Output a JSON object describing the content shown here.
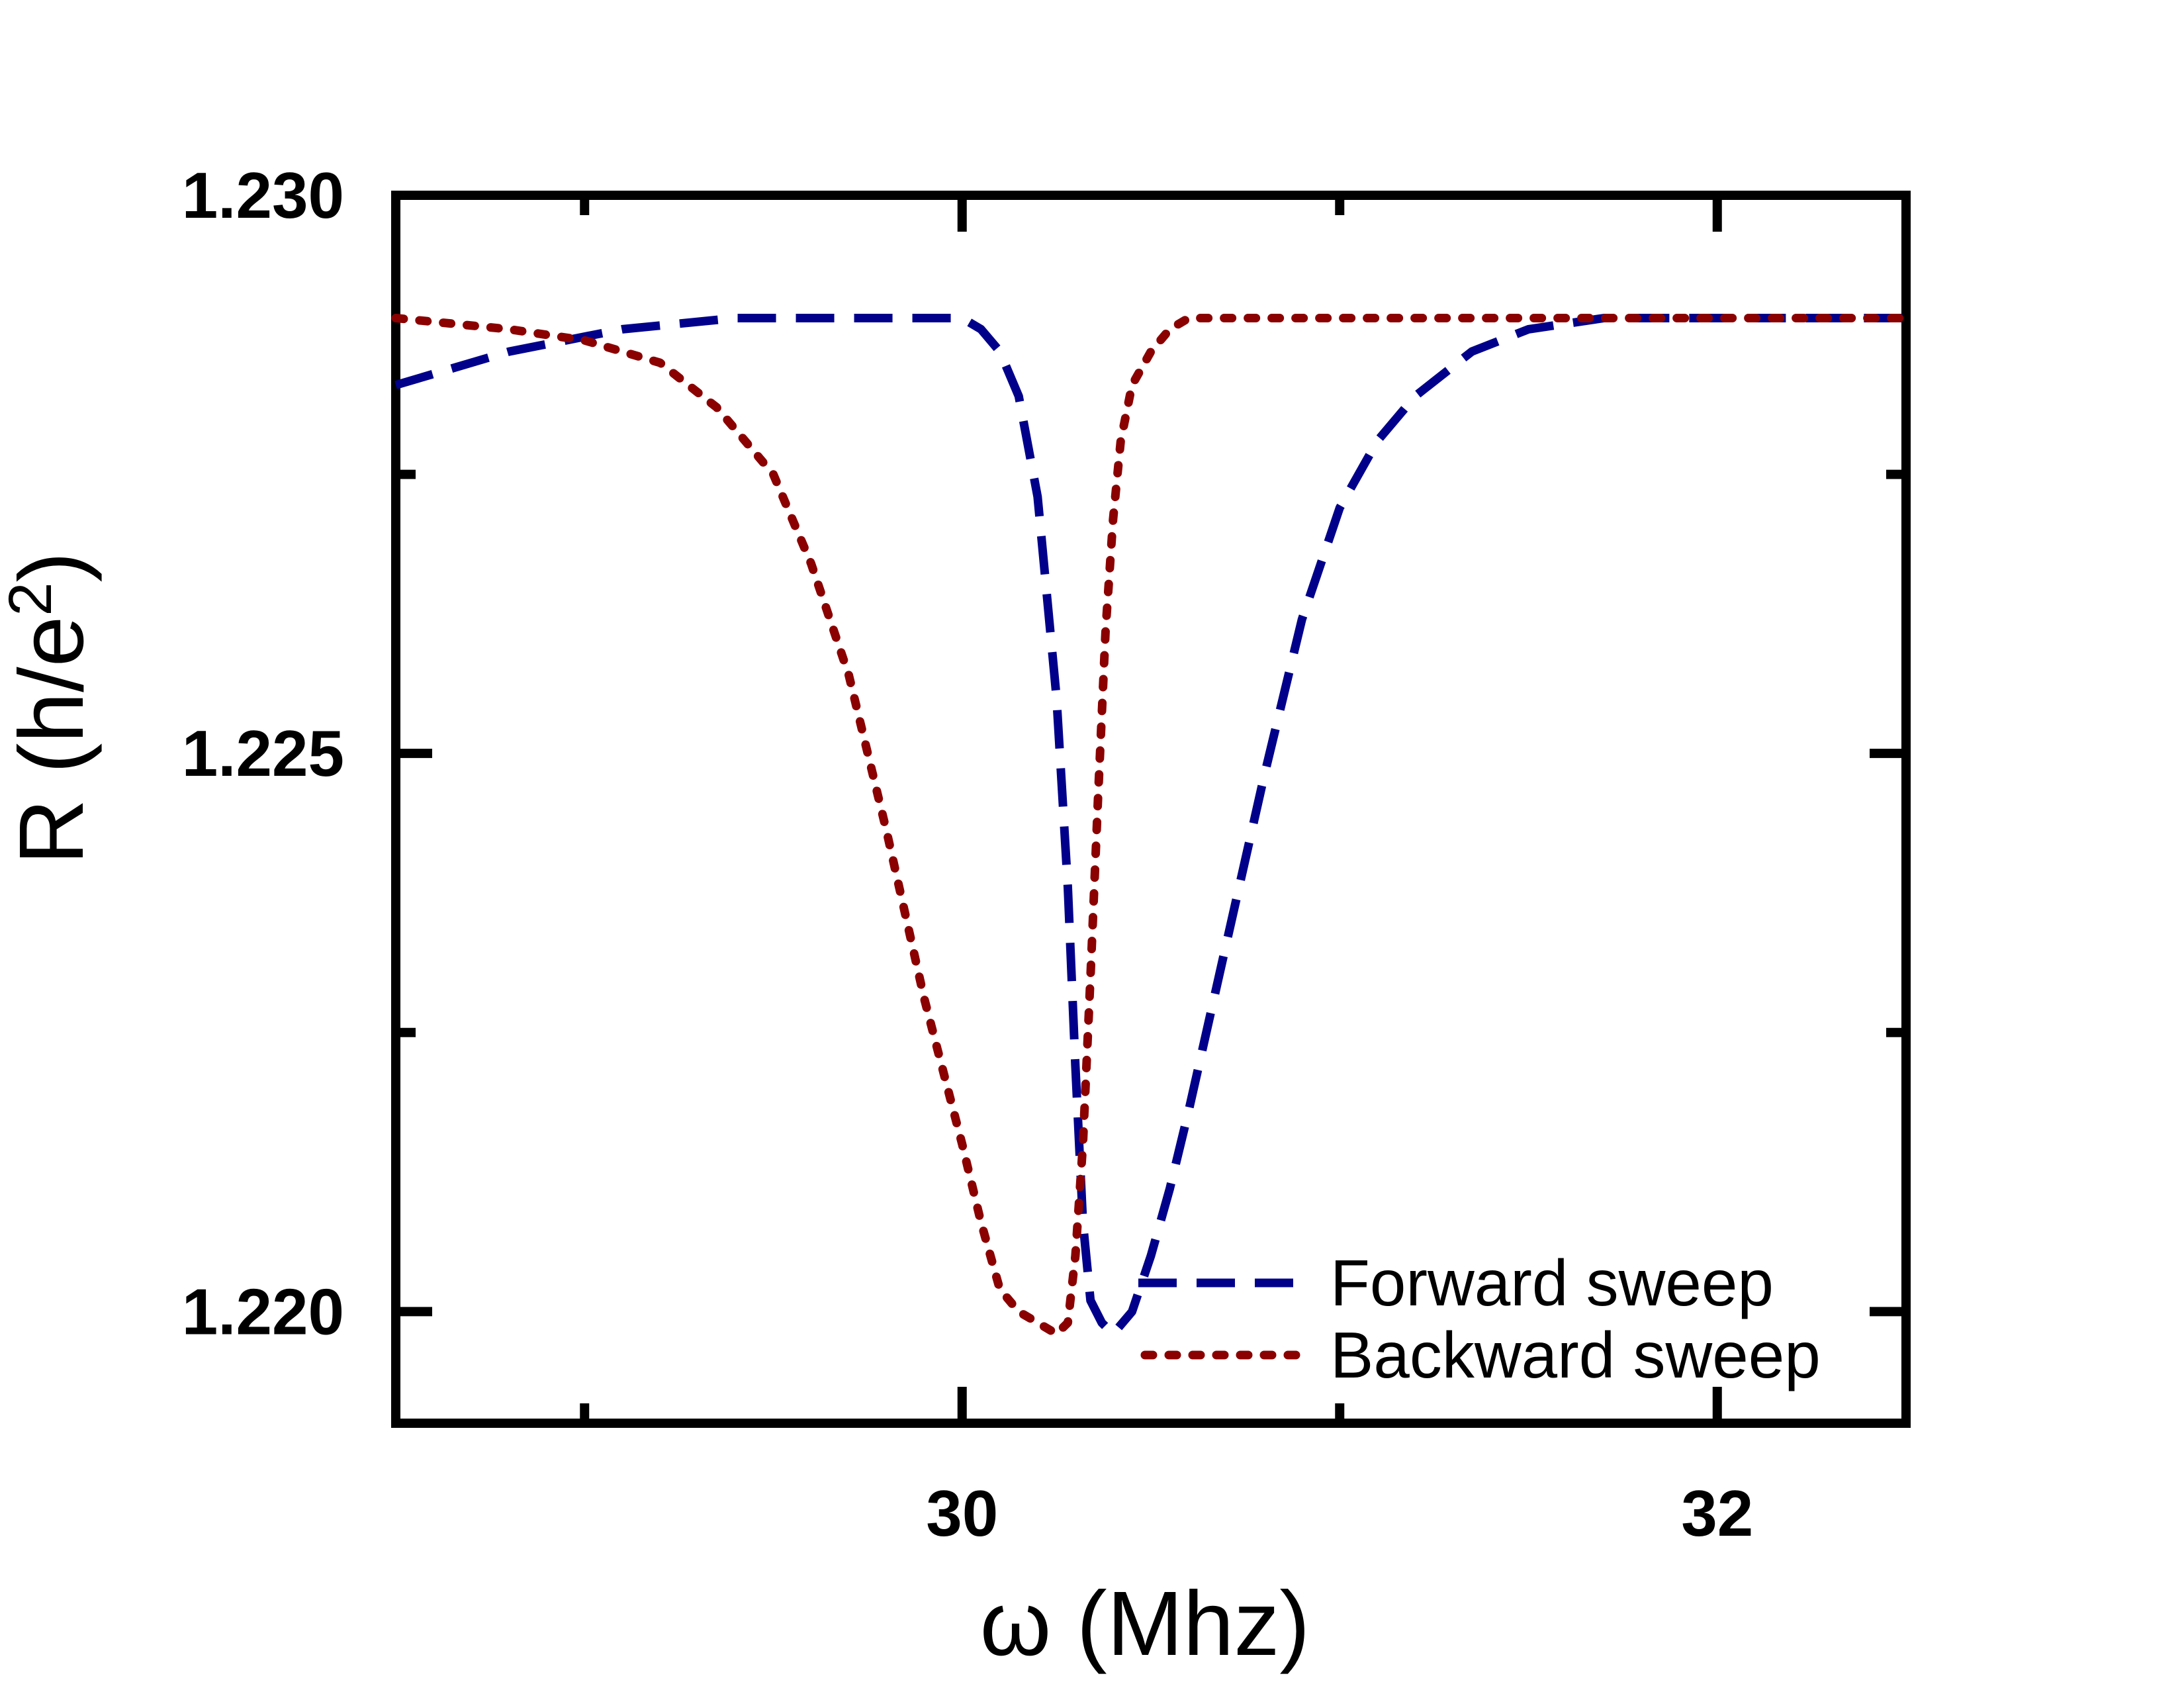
{
  "chart_data": {
    "type": "line",
    "title": "",
    "xlabel": "ω (Mhz)",
    "ylabel_main": "R (h/e",
    "ylabel_sup": "2",
    "ylabel_close": ")",
    "xlim": [
      28.5,
      32.5
    ],
    "ylim": [
      1.219,
      1.23
    ],
    "xticks": [
      {
        "value": 30,
        "label": "30"
      },
      {
        "value": 32,
        "label": "32"
      }
    ],
    "xminor": [
      29,
      31
    ],
    "yticks": [
      {
        "value": 1.22,
        "label": "1.220"
      },
      {
        "value": 1.225,
        "label": "1.225"
      },
      {
        "value": 1.23,
        "label": "1.230"
      }
    ],
    "yminor": [
      1.2225,
      1.2275
    ],
    "legend_position": "bottom-right",
    "series": [
      {
        "name": "Forward sweep",
        "color": "#00008B",
        "style": "dashed",
        "x": [
          28.5,
          28.8,
          29.1,
          29.4,
          29.7,
          29.9,
          30.0,
          30.05,
          30.1,
          30.15,
          30.2,
          30.25,
          30.28,
          30.3,
          30.32,
          30.34,
          30.37,
          30.4,
          30.45,
          30.5,
          30.55,
          30.6,
          30.7,
          30.8,
          30.9,
          31.0,
          31.1,
          31.2,
          31.35,
          31.5,
          31.7,
          32.0,
          32.3,
          32.5
        ],
        "y": [
          1.2283,
          1.2286,
          1.2288,
          1.2289,
          1.2289,
          1.2289,
          1.2289,
          1.2288,
          1.2286,
          1.2282,
          1.2273,
          1.2255,
          1.2238,
          1.2222,
          1.2208,
          1.2201,
          1.2199,
          1.2198,
          1.22,
          1.2205,
          1.2211,
          1.2218,
          1.2233,
          1.2248,
          1.2262,
          1.2272,
          1.2278,
          1.2282,
          1.2286,
          1.2288,
          1.2289,
          1.2289,
          1.2289,
          1.2289
        ]
      },
      {
        "name": "Backward sweep",
        "color": "#8B0000",
        "style": "dotted",
        "x": [
          28.5,
          28.8,
          29.0,
          29.2,
          29.35,
          29.5,
          29.6,
          29.7,
          29.8,
          29.9,
          30.0,
          30.05,
          30.1,
          30.15,
          30.2,
          30.25,
          30.28,
          30.3,
          30.32,
          30.34,
          30.36,
          30.38,
          30.4,
          30.42,
          30.45,
          30.5,
          30.55,
          30.6,
          30.65,
          30.75,
          31.0,
          31.5,
          32.0,
          32.5
        ],
        "y": [
          1.2289,
          1.2288,
          1.2287,
          1.2285,
          1.2281,
          1.2275,
          1.2267,
          1.2257,
          1.2243,
          1.2228,
          1.2215,
          1.2208,
          1.2202,
          1.22,
          1.2199,
          1.2198,
          1.2199,
          1.2205,
          1.2215,
          1.223,
          1.2246,
          1.2261,
          1.2271,
          1.2278,
          1.2283,
          1.2286,
          1.2288,
          1.2289,
          1.2289,
          1.2289,
          1.2289,
          1.2289,
          1.2289,
          1.2289
        ]
      }
    ]
  }
}
